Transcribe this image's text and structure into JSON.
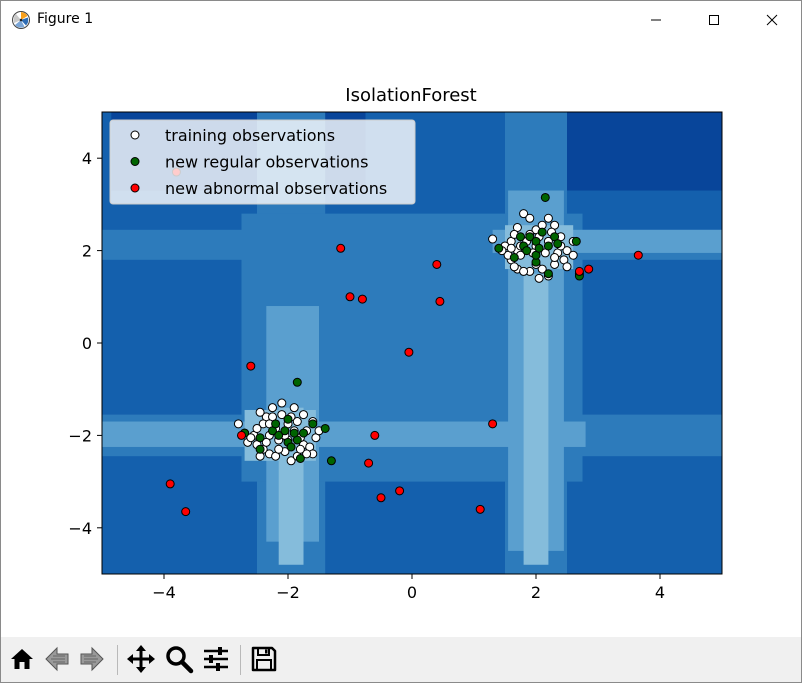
{
  "window": {
    "title": "Figure 1",
    "app_icon": "matplotlib-icon",
    "controls": [
      "minimize-icon",
      "maximize-icon",
      "close-icon"
    ]
  },
  "toolbar": {
    "buttons": [
      {
        "name": "home-button",
        "icon": "home-icon"
      },
      {
        "name": "back-button",
        "icon": "back-arrow-icon"
      },
      {
        "name": "forward-button",
        "icon": "forward-arrow-icon"
      },
      {
        "name": "pan-button",
        "icon": "move-icon"
      },
      {
        "name": "zoom-button",
        "icon": "magnifier-icon"
      },
      {
        "name": "configure-subplots-button",
        "icon": "sliders-icon"
      },
      {
        "name": "save-button",
        "icon": "floppy-disk-icon"
      }
    ]
  },
  "chart_data": {
    "type": "scatter",
    "title": "IsolationForest",
    "xlabel": "",
    "ylabel": "",
    "xlim": [
      -5,
      5
    ],
    "ylim": [
      -5,
      5
    ],
    "xticks": [
      -4,
      -2,
      0,
      2,
      4
    ],
    "yticks": [
      -4,
      -2,
      0,
      2,
      4
    ],
    "xtick_labels": [
      "−4",
      "−2",
      "0",
      "2",
      "4"
    ],
    "ytick_labels": [
      "−4",
      "−2",
      "0",
      "2",
      "4"
    ],
    "grid": false,
    "legend": {
      "location": "upper-left",
      "entries": [
        "training observations",
        "new regular observations",
        "new abnormal observations"
      ]
    },
    "background": {
      "kind": "filled-contour",
      "colormap": "Blues_r",
      "levels": [
        "#08459a",
        "#1460ad",
        "#2d7bbb",
        "#5a9fcf",
        "#85bcdb"
      ]
    },
    "series": [
      {
        "name": "training observations",
        "color": "#ffffff",
        "edgecolor": "#000000",
        "points": [
          [
            1.8,
            2.8
          ],
          [
            1.9,
            2.7
          ],
          [
            1.7,
            2.5
          ],
          [
            2.0,
            2.45
          ],
          [
            2.2,
            2.7
          ],
          [
            2.3,
            2.55
          ],
          [
            1.6,
            2.2
          ],
          [
            1.5,
            2.1
          ],
          [
            1.7,
            2.0
          ],
          [
            2.0,
            2.1
          ],
          [
            2.2,
            2.2
          ],
          [
            2.4,
            2.3
          ],
          [
            2.6,
            2.2
          ],
          [
            2.5,
            2.0
          ],
          [
            2.45,
            1.8
          ],
          [
            2.3,
            1.7
          ],
          [
            2.1,
            1.6
          ],
          [
            1.9,
            1.55
          ],
          [
            1.7,
            1.6
          ],
          [
            1.6,
            1.8
          ],
          [
            1.75,
            1.9
          ],
          [
            1.95,
            1.95
          ],
          [
            2.15,
            1.95
          ],
          [
            2.35,
            1.95
          ],
          [
            2.0,
            1.7
          ],
          [
            2.2,
            1.45
          ],
          [
            2.05,
            1.4
          ],
          [
            1.8,
            1.55
          ],
          [
            1.55,
            1.9
          ],
          [
            1.65,
            2.35
          ],
          [
            2.05,
            2.3
          ],
          [
            1.85,
            2.2
          ],
          [
            2.25,
            2.4
          ],
          [
            1.65,
            1.65
          ],
          [
            2.4,
            2.1
          ],
          [
            2.6,
            1.9
          ],
          [
            1.45,
            2.0
          ],
          [
            1.9,
            2.35
          ],
          [
            2.1,
            2.55
          ],
          [
            1.3,
            2.25
          ],
          [
            2.7,
            1.5
          ],
          [
            2.3,
            1.85
          ],
          [
            1.6,
            2.05
          ],
          [
            2.5,
            1.65
          ],
          [
            1.75,
            2.1
          ],
          [
            -2.8,
            -1.75
          ],
          [
            -2.7,
            -1.95
          ],
          [
            -2.55,
            -2.0
          ],
          [
            -2.65,
            -2.15
          ],
          [
            -2.5,
            -2.2
          ],
          [
            -2.4,
            -2.3
          ],
          [
            -2.45,
            -2.45
          ],
          [
            -2.3,
            -2.4
          ],
          [
            -2.2,
            -2.45
          ],
          [
            -2.05,
            -2.35
          ],
          [
            -1.95,
            -2.55
          ],
          [
            -1.85,
            -2.45
          ],
          [
            -1.75,
            -2.2
          ],
          [
            -1.65,
            -2.25
          ],
          [
            -1.6,
            -2.4
          ],
          [
            -1.55,
            -2.05
          ],
          [
            -1.5,
            -1.9
          ],
          [
            -1.6,
            -1.7
          ],
          [
            -1.75,
            -1.55
          ],
          [
            -1.9,
            -1.4
          ],
          [
            -2.1,
            -1.3
          ],
          [
            -2.25,
            -1.4
          ],
          [
            -2.35,
            -1.6
          ],
          [
            -2.2,
            -1.85
          ],
          [
            -2.0,
            -1.75
          ],
          [
            -1.9,
            -1.9
          ],
          [
            -2.0,
            -2.1
          ],
          [
            -2.15,
            -2.1
          ],
          [
            -1.8,
            -2.05
          ],
          [
            -1.7,
            -1.9
          ],
          [
            -2.3,
            -2.0
          ],
          [
            -2.4,
            -1.75
          ],
          [
            -1.95,
            -1.6
          ],
          [
            -2.1,
            -1.55
          ],
          [
            -2.5,
            -1.85
          ],
          [
            -2.35,
            -2.15
          ],
          [
            -2.15,
            -2.3
          ],
          [
            -2.25,
            -1.6
          ],
          [
            -1.85,
            -1.7
          ],
          [
            -2.05,
            -2.0
          ],
          [
            -2.6,
            -2.05
          ],
          [
            -1.7,
            -2.4
          ],
          [
            -2.45,
            -1.5
          ],
          [
            -1.8,
            -2.3
          ],
          [
            -2.3,
            -1.75
          ]
        ]
      },
      {
        "name": "new regular observations",
        "color": "#006400",
        "edgecolor": "#000000",
        "points": [
          [
            2.15,
            3.15
          ],
          [
            2.1,
            2.4
          ],
          [
            1.9,
            2.3
          ],
          [
            2.3,
            2.3
          ],
          [
            2.0,
            2.2
          ],
          [
            2.2,
            2.1
          ],
          [
            1.8,
            2.1
          ],
          [
            1.75,
            2.3
          ],
          [
            2.65,
            2.2
          ],
          [
            2.35,
            2.15
          ],
          [
            1.4,
            2.05
          ],
          [
            1.65,
            1.85
          ],
          [
            2.0,
            1.75
          ],
          [
            2.0,
            1.9
          ],
          [
            2.2,
            1.5
          ],
          [
            2.7,
            1.45
          ],
          [
            1.85,
            2.0
          ],
          [
            2.05,
            2.05
          ],
          [
            -1.85,
            -0.85
          ],
          [
            -2.7,
            -1.95
          ],
          [
            -2.45,
            -2.05
          ],
          [
            -2.25,
            -1.9
          ],
          [
            -2.15,
            -2.0
          ],
          [
            -2.05,
            -1.9
          ],
          [
            -2.0,
            -2.15
          ],
          [
            -1.95,
            -2.25
          ],
          [
            -1.85,
            -2.1
          ],
          [
            -1.75,
            -1.95
          ],
          [
            -1.6,
            -1.75
          ],
          [
            -1.4,
            -1.85
          ],
          [
            -2.2,
            -1.75
          ],
          [
            -1.8,
            -2.5
          ],
          [
            -2.45,
            -2.3
          ],
          [
            -1.3,
            -2.55
          ],
          [
            -2.0,
            -1.65
          ],
          [
            -1.9,
            -1.95
          ]
        ]
      },
      {
        "name": "new abnormal observations",
        "color": "#ff0000",
        "edgecolor": "#000000",
        "points": [
          [
            -3.8,
            3.7
          ],
          [
            -1.15,
            2.05
          ],
          [
            0.4,
            1.7
          ],
          [
            -1.0,
            1.0
          ],
          [
            -0.8,
            0.95
          ],
          [
            0.45,
            0.9
          ],
          [
            -0.05,
            -0.2
          ],
          [
            -2.6,
            -0.5
          ],
          [
            1.3,
            -1.75
          ],
          [
            -2.75,
            -2.0
          ],
          [
            -0.6,
            -2.0
          ],
          [
            -0.7,
            -2.6
          ],
          [
            -3.9,
            -3.05
          ],
          [
            -3.65,
            -3.65
          ],
          [
            -0.5,
            -3.35
          ],
          [
            -0.2,
            -3.2
          ],
          [
            1.1,
            -3.6
          ],
          [
            2.7,
            1.55
          ],
          [
            2.85,
            1.6
          ],
          [
            3.65,
            1.9
          ]
        ]
      }
    ]
  }
}
